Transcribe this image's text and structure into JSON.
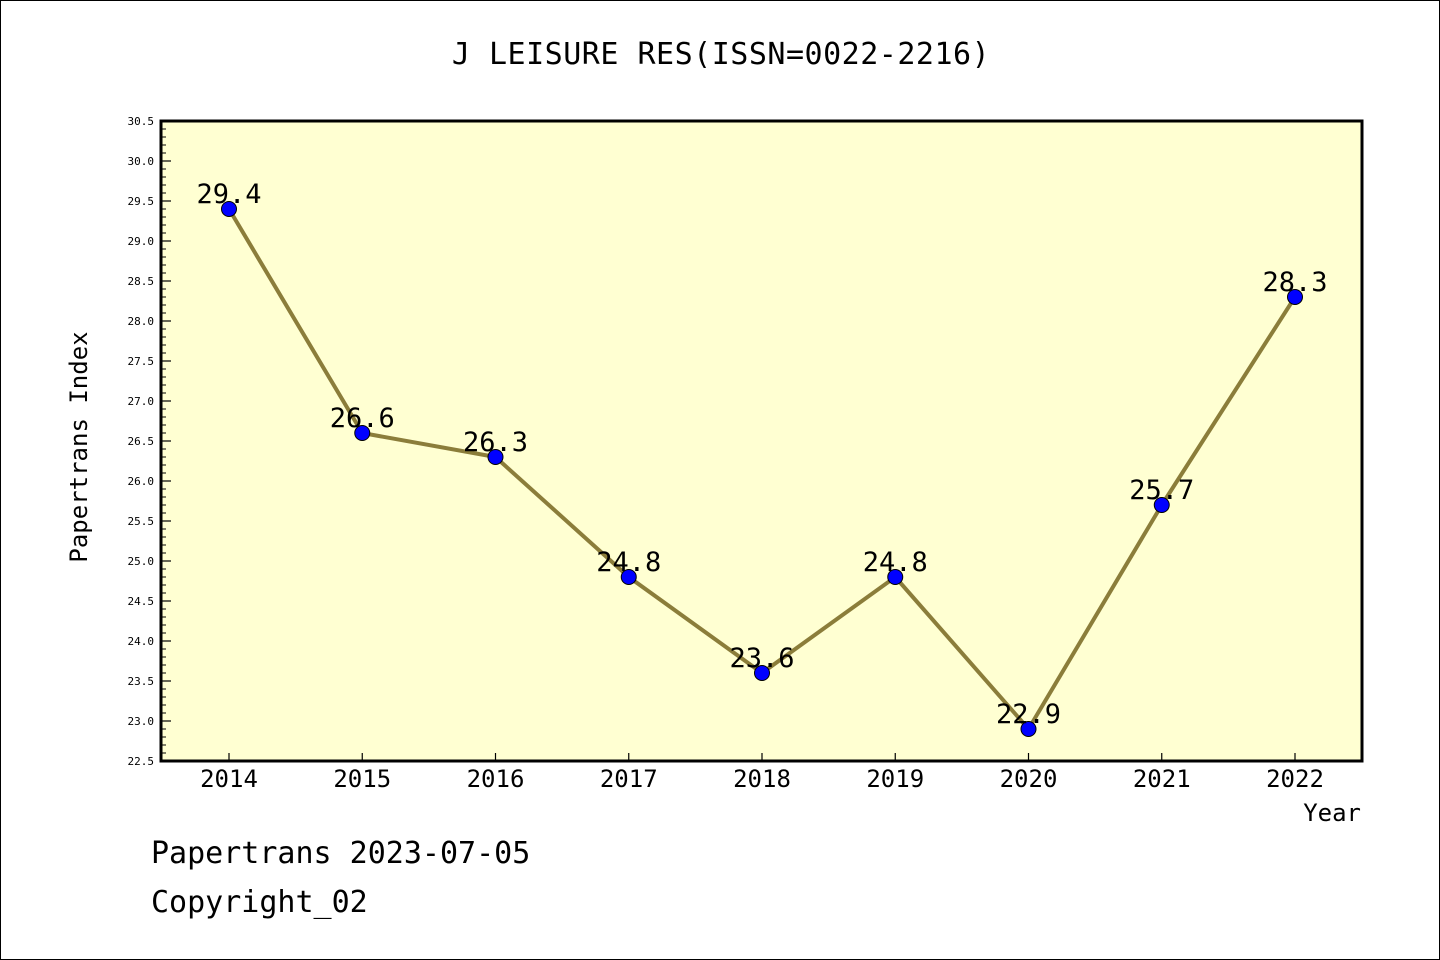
{
  "title": "J LEISURE RES(ISSN=0022-2216)",
  "footer": {
    "line1": "Papertrans 2023-07-05",
    "line2": "Copyright_02"
  },
  "colors": {
    "plot_background": "#ffffd2",
    "line": "#8b7d3a",
    "marker": "#0000ff"
  },
  "chart_data": {
    "type": "line",
    "title": "J LEISURE RES(ISSN=0022-2216)",
    "xlabel": "Year",
    "ylabel": "Papertrans Index",
    "categories": [
      "2014",
      "2015",
      "2016",
      "2017",
      "2018",
      "2019",
      "2020",
      "2021",
      "2022"
    ],
    "series": [
      {
        "values": [
          29.4,
          26.6,
          26.3,
          24.8,
          23.6,
          24.8,
          22.9,
          25.7,
          28.3
        ],
        "labels": [
          "29.4",
          "26.6",
          "26.3",
          "24.8",
          "23.6",
          "24.8",
          "22.9",
          "25.7",
          "28.3"
        ]
      }
    ],
    "ylim": [
      22.5,
      30.5
    ],
    "yticks": [
      "22.5",
      "23.0",
      "23.5",
      "24.0",
      "24.5",
      "25.0",
      "25.5",
      "26.0",
      "26.5",
      "27.0",
      "27.5",
      "28.0",
      "28.5",
      "29.0",
      "29.5",
      "30.0",
      "30.5"
    ],
    "grid": false,
    "legend": "none"
  }
}
